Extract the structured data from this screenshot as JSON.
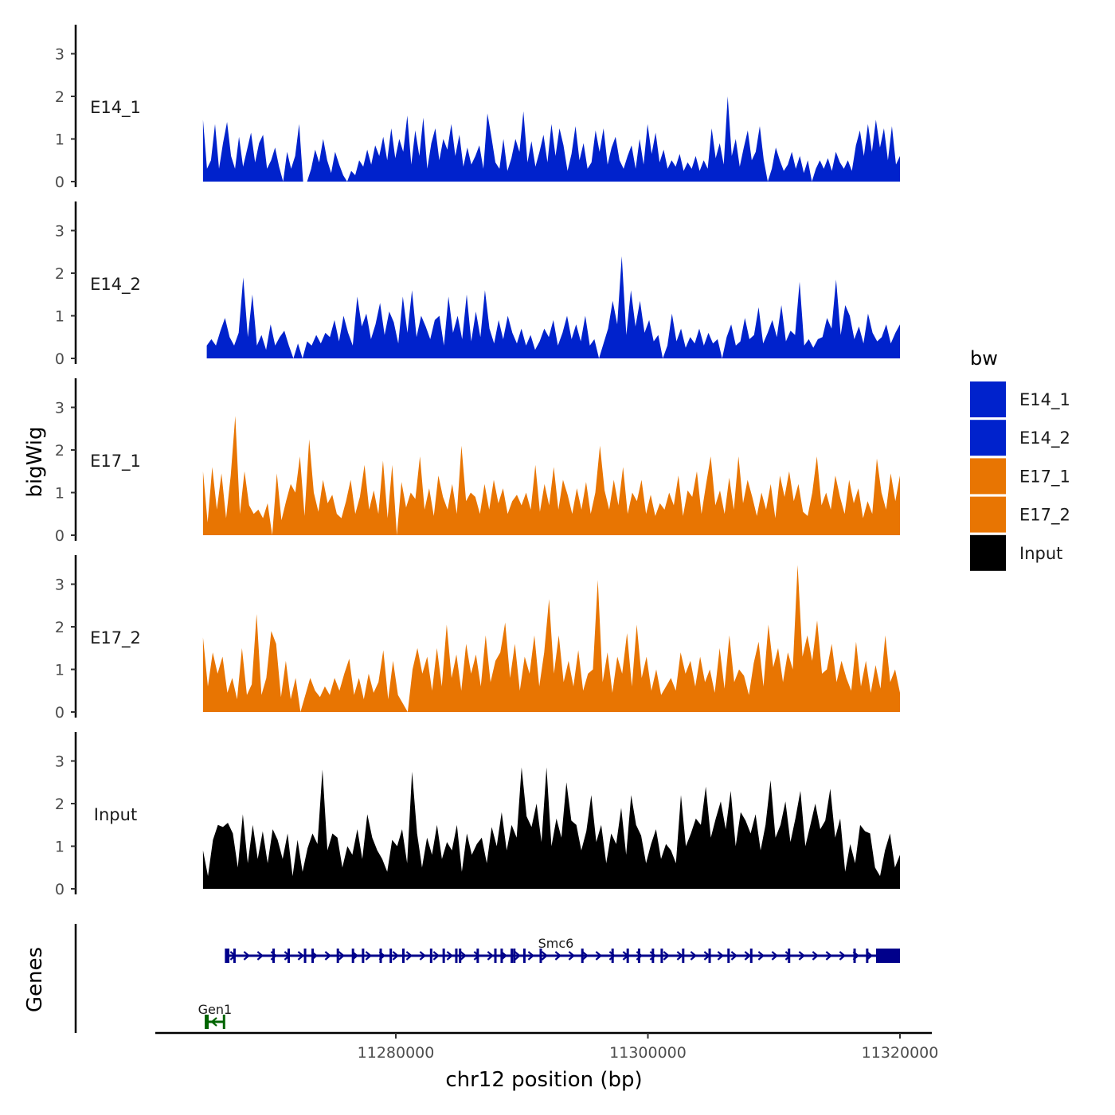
{
  "chart_data": {
    "type": "area",
    "title": "",
    "ylabel_tracks": "bigWig",
    "ylabel_genes": "Genes",
    "xlabel": "chr12 position (bp)",
    "x_ticks": [
      "11280000",
      "11300000",
      "11320000"
    ],
    "x_tick_values": [
      11280000,
      11300000,
      11320000
    ],
    "xlim": [
      11262000,
      11322500
    ],
    "ylim": [
      0,
      3.6
    ],
    "y_ticks": [
      "0",
      "1",
      "2",
      "3"
    ],
    "legend": {
      "title": "bw",
      "items": [
        {
          "label": "E14_1",
          "color": "#0022CC"
        },
        {
          "label": "E14_2",
          "color": "#0022CC"
        },
        {
          "label": "E17_1",
          "color": "#E87502"
        },
        {
          "label": "E17_2",
          "color": "#E87502"
        },
        {
          "label": "Input",
          "color": "#000000"
        }
      ]
    },
    "tracks": [
      {
        "name": "E14_1",
        "color": "#0022CC",
        "x_start": 11264700,
        "x_end": 11320000,
        "peak_max": 2.0,
        "profile": [
          1.45,
          0.3,
          0.5,
          1.35,
          0.3,
          0.9,
          1.4,
          0.6,
          0.3,
          1.05,
          0.35,
          0.75,
          1.15,
          0.45,
          0.9,
          1.1,
          0.3,
          0.5,
          0.8,
          0.35,
          0,
          0.7,
          0.3,
          0.6,
          1.35,
          0,
          0,
          0.3,
          0.75,
          0.45,
          1.0,
          0.5,
          0.2,
          0.7,
          0.4,
          0.15,
          0,
          0.25,
          0.15,
          0.5,
          0.35,
          0.75,
          0.4,
          0.85,
          0.6,
          1.05,
          0.5,
          1.25,
          0.55,
          1.0,
          0.7,
          1.55,
          0.4,
          1.2,
          0.6,
          1.5,
          0.3,
          0.9,
          1.25,
          0.5,
          1.0,
          0.75,
          1.35,
          0.6,
          1.1,
          0.35,
          0.8,
          0.4,
          0.6,
          0.85,
          0.3,
          1.6,
          1.05,
          0.45,
          0.3,
          1.0,
          0.25,
          0.55,
          1.0,
          0.7,
          1.65,
          0.45,
          0.95,
          0.35,
          0.7,
          1.1,
          0.45,
          1.35,
          0.6,
          1.25,
          0.85,
          0.25,
          0.65,
          1.3,
          0.5,
          0.9,
          0.3,
          0.45,
          1.2,
          0.7,
          1.25,
          0.4,
          0.8,
          1.05,
          0.5,
          0.3,
          0.6,
          0.85,
          0.3,
          1.0,
          0.4,
          1.35,
          0.65,
          1.15,
          0.45,
          0.75,
          0.3,
          0.5,
          0.35,
          0.65,
          0.25,
          0.45,
          0.3,
          0.6,
          0.25,
          0.5,
          0.3,
          1.25,
          0.55,
          0.9,
          0.4,
          2.0,
          0.6,
          1.0,
          0.35,
          0.8,
          1.2,
          0.5,
          0.7,
          1.3,
          0.5,
          0,
          0.3,
          0.8,
          0.5,
          0.25,
          0.4,
          0.7,
          0.3,
          0.6,
          0.2,
          0.5,
          0,
          0.3,
          0.5,
          0.3,
          0.55,
          0.25,
          0.7,
          0.45,
          0.3,
          0.5,
          0.25,
          0.85,
          1.2,
          0.6,
          1.35,
          0.7,
          1.45,
          0.8,
          1.25,
          0.5,
          1.3,
          0.4,
          0.6
        ]
      },
      {
        "name": "E14_2",
        "color": "#0022CC",
        "x_start": 11265000,
        "x_end": 11320000,
        "peak_max": 2.4,
        "profile": [
          0.3,
          0.45,
          0.3,
          0.65,
          0.95,
          0.5,
          0.3,
          0.6,
          1.9,
          0.5,
          1.5,
          0.3,
          0.55,
          0.2,
          0.8,
          0.3,
          0.5,
          0.65,
          0.3,
          0,
          0.35,
          0,
          0.4,
          0.3,
          0.55,
          0.35,
          0.6,
          0.5,
          0.9,
          0.4,
          1.0,
          0.6,
          0.3,
          1.45,
          0.75,
          1.05,
          0.45,
          0.8,
          1.3,
          0.55,
          1.1,
          0.85,
          0.35,
          1.45,
          0.6,
          1.6,
          0.5,
          1.0,
          0.75,
          0.45,
          0.9,
          1.0,
          0.3,
          1.45,
          0.6,
          1.0,
          0.45,
          1.5,
          0.4,
          1.1,
          0.5,
          1.6,
          0.7,
          0.35,
          0.9,
          0.45,
          1.0,
          0.6,
          0.35,
          0.7,
          0.3,
          0.55,
          0.2,
          0.4,
          0.7,
          0.5,
          0.9,
          0.3,
          0.6,
          1.0,
          0.45,
          0.8,
          0.4,
          1.0,
          0.3,
          0.45,
          0,
          0.35,
          0.7,
          1.35,
          0.8,
          2.4,
          0.55,
          1.6,
          0.75,
          1.35,
          0.6,
          0.9,
          0.4,
          0.55,
          0,
          0.3,
          1.05,
          0.4,
          0.7,
          0.25,
          0.5,
          0.35,
          0.7,
          0.3,
          0.6,
          0.35,
          0.45,
          0,
          0.5,
          0.8,
          0.3,
          0.4,
          0.95,
          0.45,
          0.55,
          1.2,
          0.35,
          0.6,
          0.9,
          0.5,
          1.25,
          0.4,
          0.65,
          0.55,
          1.8,
          0.3,
          0.45,
          0.25,
          0.45,
          0.5,
          0.95,
          0.7,
          1.85,
          0.55,
          1.25,
          1.0,
          0.45,
          0.75,
          0.35,
          1.05,
          0.6,
          0.4,
          0.5,
          0.8,
          0.35,
          0.6,
          0.8
        ]
      },
      {
        "name": "E17_1",
        "color": "#E87502",
        "x_start": 11264700,
        "x_end": 11320000,
        "peak_max": 2.8,
        "profile": [
          1.5,
          0.3,
          1.6,
          0.6,
          1.45,
          0.4,
          1.4,
          2.8,
          0.5,
          1.5,
          0.7,
          0.5,
          0.6,
          0.4,
          0.75,
          0,
          1.45,
          0.35,
          0.8,
          1.2,
          1.0,
          1.85,
          0.45,
          2.25,
          1.0,
          0.55,
          1.3,
          0.75,
          0.95,
          0.5,
          0.4,
          0.8,
          1.3,
          0.5,
          0.9,
          1.65,
          0.6,
          1.05,
          0.5,
          1.75,
          0.4,
          1.65,
          0,
          1.25,
          0.65,
          1.0,
          0.85,
          1.85,
          0.6,
          1.1,
          0.45,
          1.4,
          0.9,
          0.6,
          1.2,
          0.5,
          2.1,
          0.8,
          1.0,
          0.9,
          0.5,
          1.2,
          0.6,
          1.3,
          0.75,
          1.1,
          0.5,
          0.8,
          0.95,
          0.7,
          1.0,
          0.6,
          1.65,
          0.55,
          1.2,
          0.7,
          1.6,
          0.6,
          1.3,
          0.95,
          0.5,
          1.1,
          0.6,
          1.25,
          0.5,
          1.0,
          2.1,
          1.05,
          0.6,
          1.3,
          0.7,
          1.6,
          0.5,
          1.0,
          0.8,
          1.3,
          0.5,
          0.95,
          0.45,
          0.75,
          0.6,
          1.0,
          0.7,
          1.4,
          0.45,
          1.05,
          0.9,
          1.5,
          0.5,
          1.2,
          1.85,
          0.7,
          1.05,
          0.5,
          1.35,
          0.6,
          1.85,
          0.75,
          1.3,
          0.9,
          0.45,
          1.0,
          0.6,
          1.2,
          0.4,
          1.4,
          0.9,
          1.5,
          0.8,
          1.2,
          0.55,
          0.45,
          1.0,
          1.85,
          0.7,
          1.0,
          0.6,
          1.4,
          0.9,
          0.5,
          1.3,
          0.75,
          1.1,
          0.4,
          0.8,
          0.5,
          1.8,
          1.0,
          0.6,
          1.45,
          0.8,
          1.4
        ]
      },
      {
        "name": "E17_2",
        "color": "#E87502",
        "x_start": 11264700,
        "x_end": 11320000,
        "peak_max": 3.45,
        "profile": [
          1.75,
          0.6,
          1.4,
          0.9,
          1.3,
          0.45,
          0.8,
          0.3,
          1.5,
          0.4,
          0.65,
          2.3,
          0.4,
          0.8,
          1.9,
          1.6,
          0.35,
          1.2,
          0.3,
          0.8,
          0,
          0.4,
          0.8,
          0.5,
          0.35,
          0.6,
          0.4,
          0.8,
          0.5,
          0.9,
          1.25,
          0.4,
          0.8,
          0.3,
          0.9,
          0.45,
          0.7,
          1.45,
          0.3,
          1.2,
          0.4,
          0.2,
          0,
          1.0,
          1.5,
          0.9,
          1.3,
          0.5,
          1.5,
          0.6,
          2.05,
          0.8,
          1.35,
          0.5,
          1.6,
          0.9,
          1.35,
          0.6,
          1.8,
          0.7,
          1.2,
          1.4,
          2.1,
          0.8,
          1.6,
          0.5,
          1.3,
          0.9,
          1.8,
          0.6,
          1.4,
          2.65,
          0.9,
          1.8,
          0.7,
          1.2,
          0.6,
          1.45,
          0.5,
          0.9,
          1.0,
          3.1,
          0.7,
          1.4,
          0.45,
          1.3,
          0.9,
          1.85,
          0.6,
          2.05,
          0.8,
          1.3,
          0.5,
          1.0,
          0.4,
          0.6,
          0.8,
          0.5,
          1.4,
          0.9,
          1.2,
          0.6,
          1.3,
          0.7,
          1.0,
          0.45,
          1.5,
          0.55,
          1.8,
          0.7,
          1.0,
          0.85,
          0.4,
          1.15,
          1.65,
          0.6,
          2.05,
          1.05,
          1.5,
          0.7,
          1.4,
          1.0,
          3.45,
          1.3,
          1.8,
          1.2,
          2.15,
          0.9,
          1.0,
          1.6,
          0.7,
          1.2,
          0.8,
          0.5,
          1.65,
          0.6,
          1.2,
          0.45,
          1.1,
          0.55,
          1.8,
          0.7,
          1.0,
          0.45
        ]
      },
      {
        "name": "Input",
        "color": "#000000",
        "x_start": 11264700,
        "x_end": 11320000,
        "peak_max": 2.85,
        "profile": [
          0.9,
          0.3,
          1.15,
          1.5,
          1.45,
          1.55,
          1.3,
          0.5,
          1.75,
          0.6,
          1.5,
          0.7,
          1.35,
          0.6,
          1.4,
          1.15,
          0.7,
          1.3,
          0.3,
          1.15,
          0.4,
          0.95,
          1.3,
          1.05,
          2.8,
          0.9,
          1.3,
          1.2,
          0.5,
          1.0,
          0.8,
          1.4,
          0.7,
          1.75,
          1.2,
          0.9,
          0.7,
          0.4,
          1.15,
          1.0,
          1.4,
          0.6,
          2.75,
          1.3,
          0.5,
          1.2,
          0.8,
          1.5,
          0.7,
          1.1,
          0.9,
          1.5,
          0.4,
          1.3,
          0.8,
          1.05,
          1.2,
          0.6,
          1.45,
          1.0,
          1.8,
          0.9,
          1.5,
          1.2,
          2.85,
          1.7,
          1.45,
          2.0,
          1.1,
          2.85,
          1.0,
          1.65,
          1.2,
          2.5,
          1.6,
          1.5,
          0.9,
          1.35,
          2.2,
          1.1,
          1.5,
          0.6,
          1.3,
          1.05,
          1.9,
          0.8,
          2.2,
          1.5,
          1.25,
          0.6,
          1.05,
          1.4,
          0.7,
          1.05,
          0.9,
          0.6,
          2.2,
          1.0,
          1.3,
          1.65,
          1.5,
          2.4,
          1.2,
          1.65,
          2.05,
          1.4,
          2.3,
          1.0,
          1.8,
          1.6,
          1.3,
          1.75,
          0.9,
          1.5,
          2.55,
          1.2,
          1.5,
          2.05,
          1.1,
          1.65,
          2.3,
          1.0,
          1.5,
          2.0,
          1.4,
          1.6,
          2.35,
          1.2,
          1.65,
          0.4,
          1.05,
          0.6,
          1.5,
          1.35,
          1.3,
          0.5,
          0.3,
          0.9,
          1.3,
          0.5,
          0.8
        ]
      }
    ],
    "genes": [
      {
        "name": "Smc6",
        "strand": "+",
        "color": "#00008B",
        "start": 11266500,
        "end": 11320000,
        "thick_start": 11318100,
        "exons": [
          11266700,
          11267200,
          11270300,
          11271500,
          11272800,
          11273400,
          11275400,
          11276600,
          11277400,
          11278800,
          11279600,
          11280600,
          11282800,
          11283800,
          11284800,
          11285100,
          11286500,
          11287900,
          11288400,
          11289200,
          11289400,
          11290200,
          11291500,
          11294800,
          11297200,
          11298400,
          11299300,
          11300400,
          11301100,
          11302800,
          11304900,
          11306400,
          11308200,
          11311200,
          11316400,
          11317400
        ]
      },
      {
        "name": "Gen1",
        "strand": "-",
        "color": "#006400",
        "start": 11264900,
        "end": 11266400,
        "thick_start": null,
        "exons": []
      }
    ]
  }
}
